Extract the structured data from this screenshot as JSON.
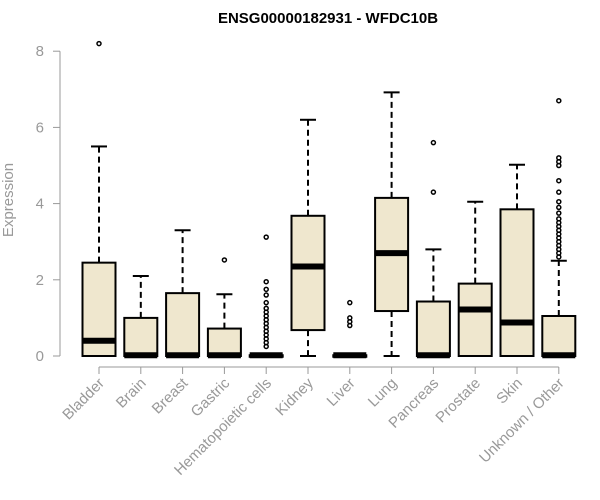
{
  "chart_data": {
    "type": "boxplot",
    "title": "ENSG00000182931 - WFDC10B",
    "xlabel": "",
    "ylabel": "Expression",
    "ylim": [
      0,
      8.2
    ],
    "yticks": [
      0,
      2,
      4,
      6,
      8
    ],
    "grid": false,
    "colors": {
      "box_fill": "#efe7ce",
      "stroke": "#000000",
      "axis": "#999999"
    },
    "categories": [
      "Bladder",
      "Brain",
      "Breast",
      "Gastric",
      "Hematopoietic cells",
      "Kidney",
      "Liver",
      "Lung",
      "Pancreas",
      "Prostate",
      "Skin",
      "Unknown / Other"
    ],
    "boxes": [
      {
        "category": "Bladder",
        "min": 0,
        "q1": 0,
        "median": 0.4,
        "q3": 2.45,
        "max": 5.5,
        "outliers": [
          8.2
        ]
      },
      {
        "category": "Brain",
        "min": 0,
        "q1": 0,
        "median": 0.02,
        "q3": 1.0,
        "max": 2.1,
        "outliers": []
      },
      {
        "category": "Breast",
        "min": 0,
        "q1": 0,
        "median": 0.02,
        "q3": 1.65,
        "max": 3.3,
        "outliers": []
      },
      {
        "category": "Gastric",
        "min": 0,
        "q1": 0,
        "median": 0.02,
        "q3": 0.72,
        "max": 1.62,
        "outliers": [
          2.52
        ]
      },
      {
        "category": "Hematopoietic cells",
        "min": 0,
        "q1": 0,
        "median": 0.02,
        "q3": 0.02,
        "max": 0.05,
        "outliers": [
          0.25,
          0.35,
          0.45,
          0.55,
          0.65,
          0.75,
          0.85,
          0.95,
          1.05,
          1.15,
          1.25,
          1.4,
          1.6,
          1.75,
          1.95,
          3.12
        ]
      },
      {
        "category": "Kidney",
        "min": 0,
        "q1": 0.68,
        "median": 2.35,
        "q3": 3.68,
        "max": 6.2,
        "outliers": []
      },
      {
        "category": "Liver",
        "min": 0,
        "q1": 0,
        "median": 0.02,
        "q3": 0.02,
        "max": 0.05,
        "outliers": [
          0.8,
          0.9,
          1.0,
          1.4
        ]
      },
      {
        "category": "Lung",
        "min": 0,
        "q1": 1.18,
        "median": 2.7,
        "q3": 4.15,
        "max": 6.92,
        "outliers": []
      },
      {
        "category": "Pancreas",
        "min": 0,
        "q1": 0,
        "median": 0.02,
        "q3": 1.43,
        "max": 2.8,
        "outliers": [
          4.3,
          5.6
        ]
      },
      {
        "category": "Prostate",
        "min": 0,
        "q1": 0,
        "median": 1.22,
        "q3": 1.9,
        "max": 4.05,
        "outliers": []
      },
      {
        "category": "Skin",
        "min": 0,
        "q1": 0,
        "median": 0.88,
        "q3": 3.85,
        "max": 5.02,
        "outliers": []
      },
      {
        "category": "Unknown / Other",
        "min": 0,
        "q1": 0,
        "median": 0.02,
        "q3": 1.05,
        "max": 2.5,
        "outliers": [
          2.6,
          2.7,
          2.8,
          2.9,
          3.0,
          3.1,
          3.2,
          3.3,
          3.4,
          3.5,
          3.6,
          3.75,
          3.9,
          4.05,
          4.3,
          4.6,
          5.0,
          5.1,
          5.2,
          6.7
        ]
      }
    ]
  }
}
